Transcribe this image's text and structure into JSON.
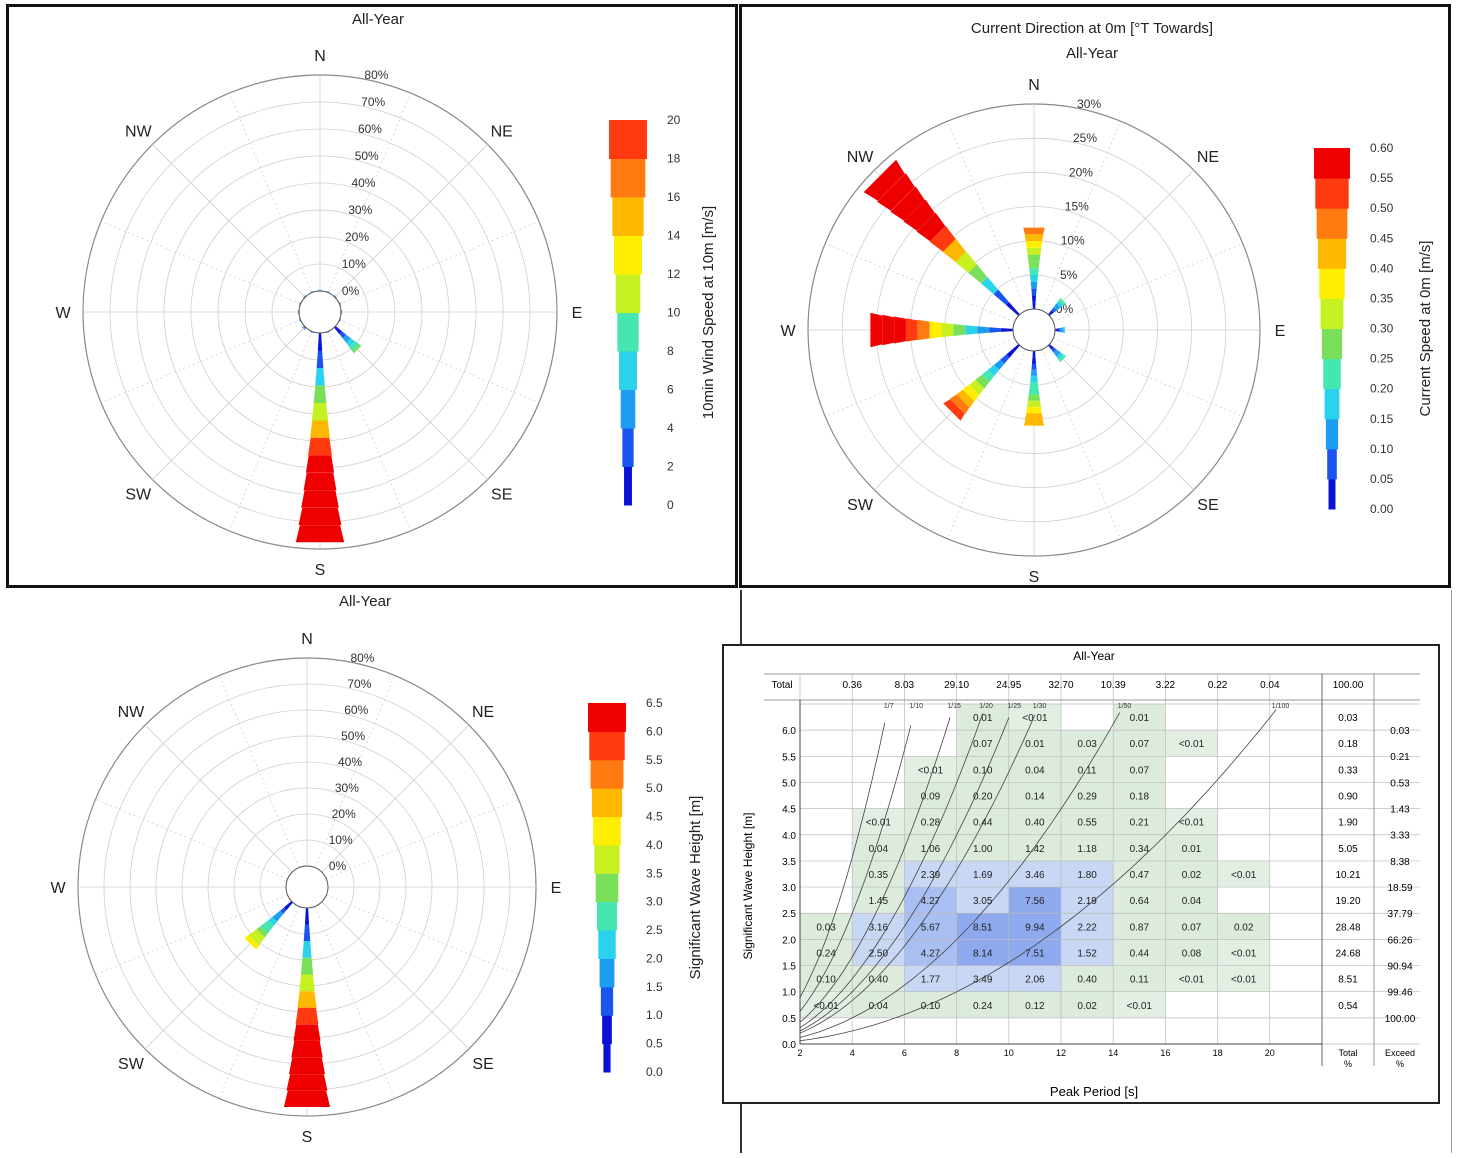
{
  "panels": [
    {
      "id": "wind",
      "title_lines": [
        "All-Year"
      ],
      "ring_labels": [
        "0%",
        "10%",
        "20%",
        "30%",
        "40%",
        "50%",
        "60%",
        "70%",
        "80%"
      ],
      "directions": [
        "N",
        "NE",
        "E",
        "SE",
        "S",
        "SW",
        "W",
        "NW"
      ],
      "colorbar_ticks": [
        "0",
        "2",
        "4",
        "6",
        "8",
        "10",
        "12",
        "14",
        "16",
        "18",
        "20"
      ],
      "colorbar_label": "10min Wind Speed at 10m [m/s]"
    },
    {
      "id": "current",
      "title_lines": [
        "Current Direction at 0m [°T Towards]",
        "All-Year"
      ],
      "ring_labels": [
        "0%",
        "5%",
        "10%",
        "15%",
        "20%",
        "25%",
        "30%"
      ],
      "directions": [
        "N",
        "NE",
        "E",
        "SE",
        "S",
        "SW",
        "W",
        "NW"
      ],
      "colorbar_ticks": [
        "0.00",
        "0.05",
        "0.10",
        "0.15",
        "0.20",
        "0.25",
        "0.30",
        "0.35",
        "0.40",
        "0.45",
        "0.50",
        "0.55",
        "0.60"
      ],
      "colorbar_label": "Current Speed at 0m [m/s]"
    },
    {
      "id": "wave",
      "title_lines": [
        "All-Year"
      ],
      "ring_labels": [
        "0%",
        "10%",
        "20%",
        "30%",
        "40%",
        "50%",
        "60%",
        "70%",
        "80%"
      ],
      "directions": [
        "N",
        "NE",
        "E",
        "SE",
        "S",
        "SW",
        "W",
        "NW"
      ],
      "colorbar_ticks": [
        "0.0",
        "0.5",
        "1.0",
        "1.5",
        "2.0",
        "2.5",
        "3.0",
        "3.5",
        "4.0",
        "4.5",
        "5.0",
        "5.5",
        "6.0",
        "6.5"
      ],
      "colorbar_label": "Significant Wave Height [m]"
    }
  ],
  "chart_data": [
    {
      "type": "rose",
      "name": "wind",
      "radial_max_pct": 80,
      "directions_deg": [
        0,
        22.5,
        45,
        67.5,
        90,
        112.5,
        135,
        157.5,
        180,
        202.5,
        225,
        247.5,
        270,
        292.5,
        315,
        337.5
      ],
      "frequency_pct": [
        0.5,
        0.5,
        0.5,
        0.5,
        0.5,
        0.5,
        12,
        0.5,
        78,
        0.5,
        1,
        0.5,
        0.5,
        0.5,
        0.5,
        0.5
      ],
      "color_stops": [
        "#0a12d8",
        "#1b55f0",
        "#1d9df2",
        "#2bd2ec",
        "#45e6b2",
        "#7ae05a",
        "#c6f020",
        "#ffee00",
        "#ffb800",
        "#ff7a10",
        "#ff3a10",
        "#ee0000"
      ]
    },
    {
      "type": "rose",
      "name": "current",
      "radial_max_pct": 30,
      "directions_deg": [
        0,
        22.5,
        45,
        67.5,
        90,
        112.5,
        135,
        157.5,
        180,
        202.5,
        225,
        247.5,
        270,
        292.5,
        315,
        337.5
      ],
      "frequency_pct": [
        12,
        0,
        3,
        0,
        1.5,
        0,
        3,
        0,
        11,
        0,
        14,
        0,
        21,
        0,
        29,
        0
      ],
      "color_stops": [
        "#0a12d8",
        "#1b55f0",
        "#1d9df2",
        "#2bd2ec",
        "#45e6b2",
        "#7ae05a",
        "#c6f020",
        "#ffee00",
        "#ffb800",
        "#ff7a10",
        "#ff3a10",
        "#ee0000"
      ]
    },
    {
      "type": "rose",
      "name": "wave",
      "radial_max_pct": 80,
      "directions_deg": [
        0,
        22.5,
        45,
        67.5,
        90,
        112.5,
        135,
        157.5,
        180,
        202.5,
        225,
        247.5,
        270,
        292.5,
        315,
        337.5
      ],
      "frequency_pct": [
        0,
        0,
        0,
        0,
        0,
        0,
        0,
        0,
        77,
        0,
        23,
        0,
        0,
        0,
        0,
        0
      ],
      "color_stops": [
        "#0a12d8",
        "#1b55f0",
        "#1d9df2",
        "#2bd2ec",
        "#45e6b2",
        "#7ae05a",
        "#c6f020",
        "#ffee00",
        "#ffb800",
        "#ff7a10",
        "#ff3a10",
        "#ee0000"
      ]
    },
    {
      "type": "table",
      "name": "scatter",
      "title": "All-Year",
      "xlabel": "Peak Period [s]",
      "ylabel": "Significant Wave Height [m]",
      "total_label": "Total",
      "col_totals": [
        "0.36",
        "8.03",
        "29.10",
        "24.95",
        "32.70",
        "10.39",
        "3.22",
        "0.22",
        "0.04",
        "100.00"
      ],
      "x_ticks": [
        "2",
        "4",
        "6",
        "8",
        "10",
        "12",
        "14",
        "16",
        "18",
        "20"
      ],
      "y_ticks": [
        "0.0",
        "0.5",
        "1.0",
        "1.5",
        "2.0",
        "2.5",
        "3.0",
        "3.5",
        "4.0",
        "4.5",
        "5.0",
        "5.5",
        "6.0"
      ],
      "x_range": [
        2,
        22
      ],
      "y_range": [
        0,
        6.5
      ],
      "steepness_labels": [
        "1/7",
        "1/10",
        "1/15",
        "1/20",
        "1/25",
        "1/30",
        "1/50",
        "1/100"
      ],
      "rows": [
        {
          "hs": "6.0-6.5",
          "cells": [
            "",
            "",
            "",
            "0.01",
            "<0.01",
            "",
            "0.01",
            "",
            ""
          ],
          "total": "0.03",
          "exceed": "0.03"
        },
        {
          "hs": "5.5-6.0",
          "cells": [
            "",
            "",
            "",
            "0.07",
            "0.01",
            "0.03",
            "0.07",
            "<0.01",
            ""
          ],
          "total": "0.18",
          "exceed": "0.21"
        },
        {
          "hs": "5.0-5.5",
          "cells": [
            "",
            "",
            "<0.01",
            "0.10",
            "0.04",
            "0.11",
            "0.07",
            "",
            ""
          ],
          "total": "0.33",
          "exceed": "0.53"
        },
        {
          "hs": "4.5-5.0",
          "cells": [
            "",
            "",
            "0.09",
            "0.20",
            "0.14",
            "0.29",
            "0.18",
            "",
            ""
          ],
          "total": "0.90",
          "exceed": "1.43"
        },
        {
          "hs": "4.0-4.5",
          "cells": [
            "",
            "<0.01",
            "0.28",
            "0.44",
            "0.40",
            "0.55",
            "0.21",
            "<0.01",
            ""
          ],
          "total": "1.90",
          "exceed": "3.33"
        },
        {
          "hs": "3.5-4.0",
          "cells": [
            "",
            "0.04",
            "1.06",
            "1.00",
            "1.42",
            "1.18",
            "0.34",
            "0.01",
            ""
          ],
          "total": "5.05",
          "exceed": "8.38"
        },
        {
          "hs": "3.0-3.5",
          "cells": [
            "",
            "0.35",
            "2.39",
            "1.69",
            "3.46",
            "1.80",
            "0.47",
            "0.02",
            "<0.01"
          ],
          "total": "10.21",
          "exceed": "18.59"
        },
        {
          "hs": "2.5-3.0",
          "cells": [
            "",
            "1.45",
            "4.27",
            "3.05",
            "7.56",
            "2.19",
            "0.64",
            "0.04",
            ""
          ],
          "total": "19.20",
          "exceed": "37.79"
        },
        {
          "hs": "2.0-2.5",
          "cells": [
            "0.03",
            "3.16",
            "5.67",
            "8.51",
            "9.94",
            "2.22",
            "0.87",
            "0.07",
            "0.02"
          ],
          "total": "28.48",
          "exceed": "66.26"
        },
        {
          "hs": "1.5-2.0",
          "cells": [
            "0.24",
            "2.50",
            "4.27",
            "8.14",
            "7.51",
            "1.52",
            "0.44",
            "0.08",
            "<0.01"
          ],
          "total": "24.68",
          "exceed": "90.94"
        },
        {
          "hs": "1.0-1.5",
          "cells": [
            "0.10",
            "0.40",
            "1.77",
            "3.49",
            "2.06",
            "0.40",
            "0.11",
            "<0.01",
            "<0.01"
          ],
          "total": "8.51",
          "exceed": "99.46"
        },
        {
          "hs": "0.5-1.0",
          "cells": [
            "<0.01",
            "0.04",
            "0.10",
            "0.24",
            "0.12",
            "0.02",
            "<0.01",
            "",
            ""
          ],
          "total": "0.54",
          "exceed": "100.00"
        }
      ],
      "footer_total_label": [
        "Total",
        "%"
      ],
      "footer_exceed_label": [
        "Exceed",
        "%"
      ]
    }
  ]
}
